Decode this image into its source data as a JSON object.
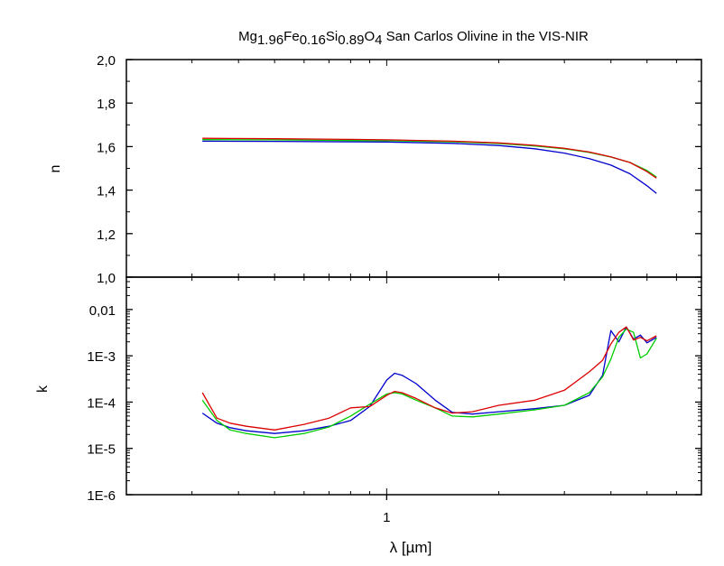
{
  "chart_data": {
    "type": "line",
    "title": {
      "parts": [
        {
          "text": "Mg",
          "sub": false
        },
        {
          "text": "1.96",
          "sub": true
        },
        {
          "text": "Fe",
          "sub": false
        },
        {
          "text": "0.16",
          "sub": true
        },
        {
          "text": "Si",
          "sub": false
        },
        {
          "text": "0.89",
          "sub": true
        },
        {
          "text": "O",
          "sub": false
        },
        {
          "text": "4",
          "sub": true
        },
        {
          "text": " San Carlos Olivine in the VIS-NIR",
          "sub": false
        }
      ]
    },
    "xlabel": "λ [µm]",
    "x_scale": "log",
    "xlim": [
      0.2,
      7
    ],
    "x_ticks": [
      {
        "value": 1,
        "label": "1"
      }
    ],
    "panels": [
      {
        "id": "n",
        "ylabel": "n",
        "y_scale": "linear",
        "ylim": [
          1.0,
          2.0
        ],
        "y_ticks": [
          {
            "value": 1.0,
            "label": "1,0"
          },
          {
            "value": 1.2,
            "label": "1,2"
          },
          {
            "value": 1.4,
            "label": "1,4"
          },
          {
            "value": 1.6,
            "label": "1,6"
          },
          {
            "value": 1.8,
            "label": "1,8"
          },
          {
            "value": 2.0,
            "label": "2,0"
          }
        ],
        "series": [
          {
            "color": "#0000cc",
            "x": [
              0.32,
              0.5,
              0.8,
              1.0,
              1.5,
              2.0,
              2.5,
              3.0,
              3.5,
              4.0,
              4.5,
              5.0,
              5.3
            ],
            "y": [
              1.625,
              1.624,
              1.622,
              1.621,
              1.615,
              1.605,
              1.59,
              1.57,
              1.545,
              1.515,
              1.475,
              1.42,
              1.385
            ]
          },
          {
            "color": "#00cc00",
            "x": [
              0.32,
              0.5,
              0.8,
              1.0,
              1.5,
              2.0,
              2.5,
              3.0,
              3.5,
              4.0,
              4.5,
              5.0,
              5.3
            ],
            "y": [
              1.632,
              1.631,
              1.628,
              1.627,
              1.622,
              1.614,
              1.603,
              1.59,
              1.573,
              1.552,
              1.527,
              1.49,
              1.46
            ]
          },
          {
            "color": "#dd0000",
            "x": [
              0.32,
              0.5,
              0.8,
              1.0,
              1.5,
              2.0,
              2.5,
              3.0,
              3.5,
              4.0,
              4.5,
              5.0,
              5.3
            ],
            "y": [
              1.638,
              1.636,
              1.633,
              1.631,
              1.625,
              1.617,
              1.606,
              1.592,
              1.575,
              1.553,
              1.527,
              1.485,
              1.455
            ]
          }
        ]
      },
      {
        "id": "k",
        "ylabel": "k",
        "y_scale": "log",
        "ylim": [
          1e-06,
          0.05
        ],
        "y_ticks": [
          {
            "value": 1e-06,
            "label": "1E-6"
          },
          {
            "value": 1e-05,
            "label": "1E-5"
          },
          {
            "value": 0.0001,
            "label": "1E-4"
          },
          {
            "value": 0.001,
            "label": "1E-3"
          },
          {
            "value": 0.01,
            "label": "0,01"
          }
        ],
        "series": [
          {
            "color": "#0000cc",
            "x": [
              0.32,
              0.35,
              0.38,
              0.42,
              0.5,
              0.6,
              0.7,
              0.8,
              0.9,
              1.0,
              1.05,
              1.1,
              1.2,
              1.35,
              1.5,
              1.7,
              2.0,
              2.5,
              3.0,
              3.5,
              3.8,
              4.0,
              4.2,
              4.4,
              4.6,
              4.8,
              5.0,
              5.3
            ],
            "y": [
              5.8e-05,
              3.5e-05,
              2.8e-05,
              2.4e-05,
              2.1e-05,
              2.4e-05,
              3e-05,
              4e-05,
              8e-05,
              0.0003,
              0.00042,
              0.00038,
              0.00025,
              0.00011,
              6e-05,
              5.5e-05,
              6.2e-05,
              7.2e-05,
              8.5e-05,
              0.00014,
              0.00038,
              0.0035,
              0.002,
              0.0042,
              0.0023,
              0.0028,
              0.0019,
              0.0025
            ]
          },
          {
            "color": "#00cc00",
            "x": [
              0.32,
              0.35,
              0.38,
              0.42,
              0.5,
              0.6,
              0.7,
              0.8,
              0.9,
              1.0,
              1.05,
              1.1,
              1.2,
              1.35,
              1.5,
              1.7,
              2.0,
              2.5,
              3.0,
              3.5,
              3.8,
              4.0,
              4.2,
              4.4,
              4.6,
              4.8,
              5.0,
              5.3
            ],
            "y": [
              0.00011,
              4e-05,
              2.5e-05,
              2.1e-05,
              1.7e-05,
              2.1e-05,
              2.9e-05,
              5e-05,
              9e-05,
              0.00015,
              0.00016,
              0.00015,
              0.00011,
              7.5e-05,
              5e-05,
              4.8e-05,
              5.5e-05,
              6.8e-05,
              8.5e-05,
              0.00016,
              0.00035,
              0.00085,
              0.0025,
              0.0038,
              0.0032,
              0.0009,
              0.0011,
              0.0024
            ]
          },
          {
            "color": "#dd0000",
            "x": [
              0.32,
              0.35,
              0.38,
              0.42,
              0.5,
              0.6,
              0.7,
              0.8,
              0.9,
              1.0,
              1.05,
              1.1,
              1.2,
              1.35,
              1.5,
              1.7,
              2.0,
              2.5,
              3.0,
              3.5,
              3.8,
              4.0,
              4.2,
              4.4,
              4.6,
              4.8,
              5.0,
              5.3
            ],
            "y": [
              0.00016,
              4.5e-05,
              3.5e-05,
              3e-05,
              2.5e-05,
              3.3e-05,
              4.5e-05,
              7.5e-05,
              8e-05,
              0.00014,
              0.00017,
              0.00016,
              0.00012,
              7.5e-05,
              5.8e-05,
              6.2e-05,
              8.5e-05,
              0.00011,
              0.00018,
              0.00045,
              0.0008,
              0.0018,
              0.0032,
              0.0042,
              0.0022,
              0.0025,
              0.0021,
              0.0027
            ]
          }
        ]
      }
    ]
  }
}
